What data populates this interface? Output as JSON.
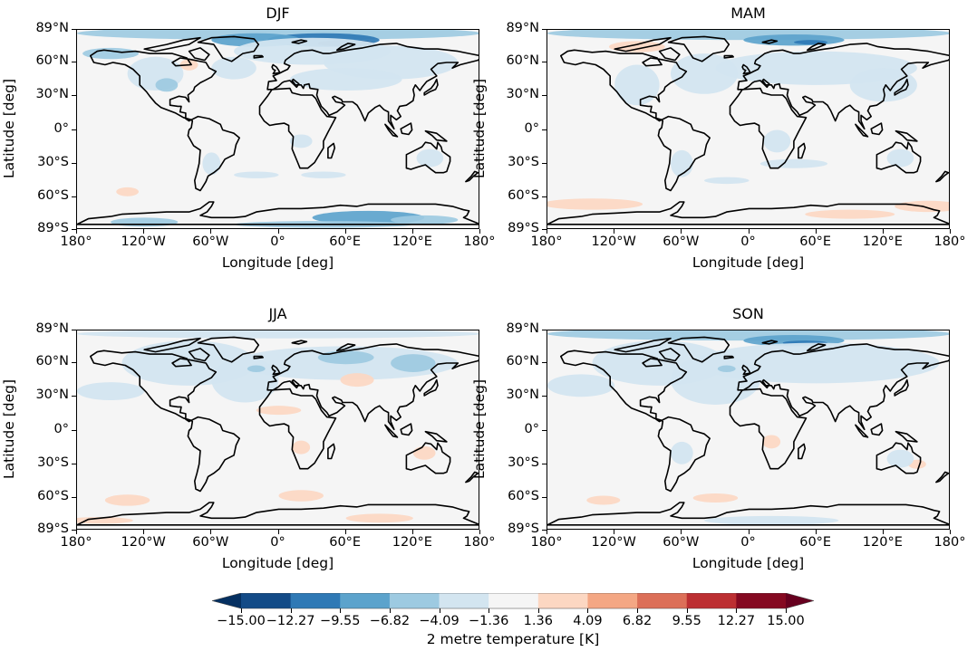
{
  "chart_data": {
    "type": "heatmap",
    "subtype": "filled-contour-map",
    "projection": "PlateCarree",
    "panels": [
      {
        "title": "DJF",
        "xlabel": "Longitude [deg]",
        "ylabel": "Latitude [deg]",
        "description": "Strong cooling (-6.8 to -15 K) over Barents/Kara Sea and Arctic; cooling over Antarctic coast (East Antarctica) -4 to -9.5 K; weak warming over Hudson Bay and Southern Ocean near 55S 150W"
      },
      {
        "title": "MAM",
        "xlabel": "Longitude [deg]",
        "ylabel": "Latitude [deg]",
        "description": "Moderate cooling over Barents Sea and Arctic; broad weak cooling over Eurasia and North Atlantic; weak warming over Canadian Archipelago and Southern Ocean/Antarctic coast"
      },
      {
        "title": "JJA",
        "xlabel": "Longitude [deg]",
        "ylabel": "Latitude [deg]",
        "description": "Weak cooling (-1.4 to -4 K) across Northern Hemisphere continents and North Atlantic; weak warming over Sahara, Central Asia and Southern Ocean"
      },
      {
        "title": "SON",
        "xlabel": "Longitude [deg]",
        "ylabel": "Latitude [deg]",
        "description": "Strong cooling over Barents/Kara Sea (-6.8 to -12 K); broad weak cooling over Arctic, Northern Hemisphere continents; weak warming over parts of Southern Ocean"
      }
    ],
    "x_ticks": [
      "180°",
      "120°W",
      "60°W",
      "0°",
      "60°E",
      "120°E",
      "180°"
    ],
    "y_ticks": [
      "89°N",
      "60°N",
      "30°N",
      "0°",
      "30°S",
      "60°S",
      "89°S"
    ],
    "xlim": [
      -180,
      180
    ],
    "ylim": [
      -89,
      89
    ],
    "colorbar": {
      "label": "2 metre temperature [K]",
      "levels": [
        -15.0,
        -12.27,
        -9.55,
        -6.82,
        -4.09,
        -1.36,
        1.36,
        4.09,
        6.82,
        9.55,
        12.27,
        15.0
      ],
      "tick_labels": [
        "−15.00",
        "−12.27",
        "−9.55",
        "−6.82",
        "−4.09",
        "−1.36",
        "1.36",
        "4.09",
        "6.82",
        "9.55",
        "12.27",
        "15.00"
      ],
      "colors": [
        "#134b87",
        "#2f79b5",
        "#5ca3cc",
        "#9dcae1",
        "#d3e5f0",
        "#f5f5f5",
        "#fcd7c2",
        "#f4a784",
        "#dc6f58",
        "#bc2f32",
        "#850921"
      ],
      "under_color": "#053061",
      "over_color": "#67001f",
      "extend": "both",
      "cmap": "RdBu_r",
      "orientation": "horizontal"
    }
  },
  "panels": [
    {
      "title": "DJF"
    },
    {
      "title": "MAM"
    },
    {
      "title": "JJA"
    },
    {
      "title": "SON"
    }
  ],
  "axes": {
    "xlabel": "Longitude [deg]",
    "ylabel": "Latitude [deg]",
    "xticks": [
      "180°",
      "120°W",
      "60°W",
      "0°",
      "60°E",
      "120°E",
      "180°"
    ],
    "yticks": [
      "89°N",
      "60°N",
      "30°N",
      "0°",
      "30°S",
      "60°S",
      "89°S"
    ]
  },
  "colorbar": {
    "label": "2 metre temperature [K]",
    "ticks": [
      "−15.00",
      "−12.27",
      "−9.55",
      "−6.82",
      "−4.09",
      "−1.36",
      "1.36",
      "4.09",
      "6.82",
      "9.55",
      "12.27",
      "15.00"
    ]
  }
}
